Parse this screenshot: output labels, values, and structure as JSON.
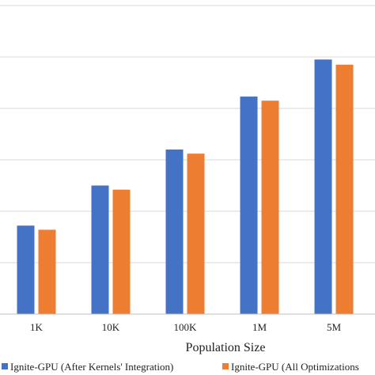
{
  "chart_data": {
    "type": "bar",
    "categories": [
      "1K",
      "10K",
      "100K",
      "1M",
      "5M"
    ],
    "series": [
      {
        "name": "Ignite-GPU (After Kernels' Integration)",
        "values": [
          1.72,
          2.5,
          3.2,
          4.23,
          4.95
        ],
        "color": "#4472C4"
      },
      {
        "name": "Ignite-GPU (All Optimizations",
        "values": [
          1.64,
          2.42,
          3.12,
          4.15,
          4.85
        ],
        "color": "#ED7D31"
      }
    ],
    "xlabel": "Population Size",
    "ylabel": "",
    "ylim": [
      0,
      6
    ],
    "grid": true,
    "legend_position": "bottom"
  }
}
